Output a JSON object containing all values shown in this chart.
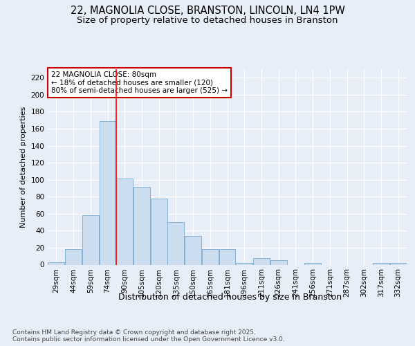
{
  "title": "22, MAGNOLIA CLOSE, BRANSTON, LINCOLN, LN4 1PW",
  "subtitle": "Size of property relative to detached houses in Branston",
  "xlabel": "Distribution of detached houses by size in Branston",
  "ylabel": "Number of detached properties",
  "categories": [
    "29sqm",
    "44sqm",
    "59sqm",
    "74sqm",
    "90sqm",
    "105sqm",
    "120sqm",
    "135sqm",
    "150sqm",
    "165sqm",
    "181sqm",
    "196sqm",
    "211sqm",
    "226sqm",
    "241sqm",
    "256sqm",
    "271sqm",
    "287sqm",
    "302sqm",
    "317sqm",
    "332sqm"
  ],
  "values": [
    3,
    18,
    58,
    169,
    101,
    92,
    78,
    50,
    34,
    18,
    18,
    2,
    8,
    5,
    0,
    2,
    0,
    0,
    0,
    2,
    2
  ],
  "bar_color": "#ccddf0",
  "bar_edge_color": "#7aaad0",
  "red_line_index": 3.5,
  "annotation_text": "22 MAGNOLIA CLOSE: 80sqm\n← 18% of detached houses are smaller (120)\n80% of semi-detached houses are larger (525) →",
  "annotation_box_color": "#ffffff",
  "annotation_box_edge": "#cc0000",
  "ylim": [
    0,
    230
  ],
  "yticks": [
    0,
    20,
    40,
    60,
    80,
    100,
    120,
    140,
    160,
    180,
    200,
    220
  ],
  "footer": "Contains HM Land Registry data © Crown copyright and database right 2025.\nContains public sector information licensed under the Open Government Licence v3.0.",
  "background_color": "#e8eef8",
  "plot_bg_color": "#e8eef8",
  "grid_color": "#ffffff",
  "title_fontsize": 10.5,
  "subtitle_fontsize": 9.5,
  "xlabel_fontsize": 9,
  "ylabel_fontsize": 8,
  "tick_fontsize": 7.5,
  "annotation_fontsize": 7.5,
  "footer_fontsize": 6.5
}
